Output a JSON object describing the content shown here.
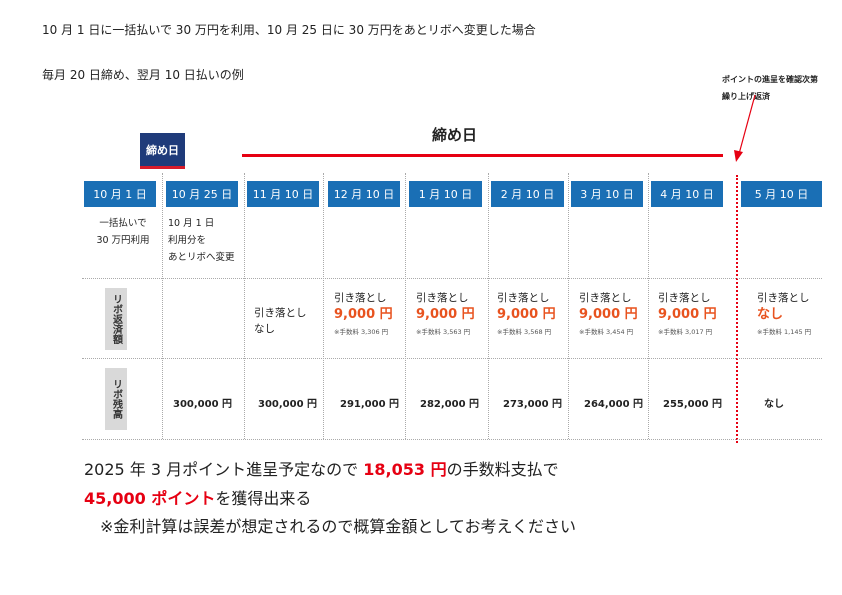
{
  "header": {
    "line1": "10 月 1 日に一括払いで 30 万円を利用、10 月 25 日に 30 万円をあとリボへ変更した場合",
    "line2": "毎月 20 日締め、翌月 10 日払いの例"
  },
  "annotation": {
    "line1": "ポイントの進呈を確認次第",
    "line2": "繰り上げ返済"
  },
  "closing_label": "締め日",
  "closing_box": "締め日",
  "dates": [
    "10 月 1 日",
    "10 月 25 日",
    "11 月 10 日",
    "12 月 10 日",
    "1 月 10 日",
    "2 月 10 日",
    "3 月 10 日",
    "4 月 10 日",
    "5 月 10 日"
  ],
  "descriptions": {
    "oct1": {
      "l1": "一括払いで",
      "l2": "30 万円利用"
    },
    "oct25": {
      "l1": "10 月 1 日",
      "l2": "利用分を",
      "l3": "あとリボへ変更"
    }
  },
  "row_labels": {
    "payment": "リボ返済額",
    "balance": "リボ残高"
  },
  "payments": [
    {
      "label": "引き落とし",
      "amount": "なし",
      "fee": ""
    },
    {
      "label": "引き落とし",
      "amount": "9,000 円",
      "fee": "※手数料 3,306 円"
    },
    {
      "label": "引き落とし",
      "amount": "9,000 円",
      "fee": "※手数料 3,563 円"
    },
    {
      "label": "引き落とし",
      "amount": "9,000 円",
      "fee": "※手数料 3,568 円"
    },
    {
      "label": "引き落とし",
      "amount": "9,000 円",
      "fee": "※手数料 3,454 円"
    },
    {
      "label": "引き落とし",
      "amount": "9,000 円",
      "fee": "※手数料 3,017 円"
    },
    {
      "label": "引き落とし",
      "amount": "なし",
      "fee": "※手数料 1,145 円"
    }
  ],
  "balances": [
    "300,000 円",
    "300,000 円",
    "291,000 円",
    "282,000 円",
    "273,000 円",
    "264,000 円",
    "255,000 円",
    "なし"
  ],
  "bottom": {
    "l1a": "2025 年 3 月ポイント進呈予定なので ",
    "l1b": "18,053 円",
    "l1c": "の手数料支払で",
    "l2a": "45,000 ポイント",
    "l2b": "を獲得出来る",
    "l3": "※金利計算は誤差が想定されるので概算金額としてお考えください"
  }
}
